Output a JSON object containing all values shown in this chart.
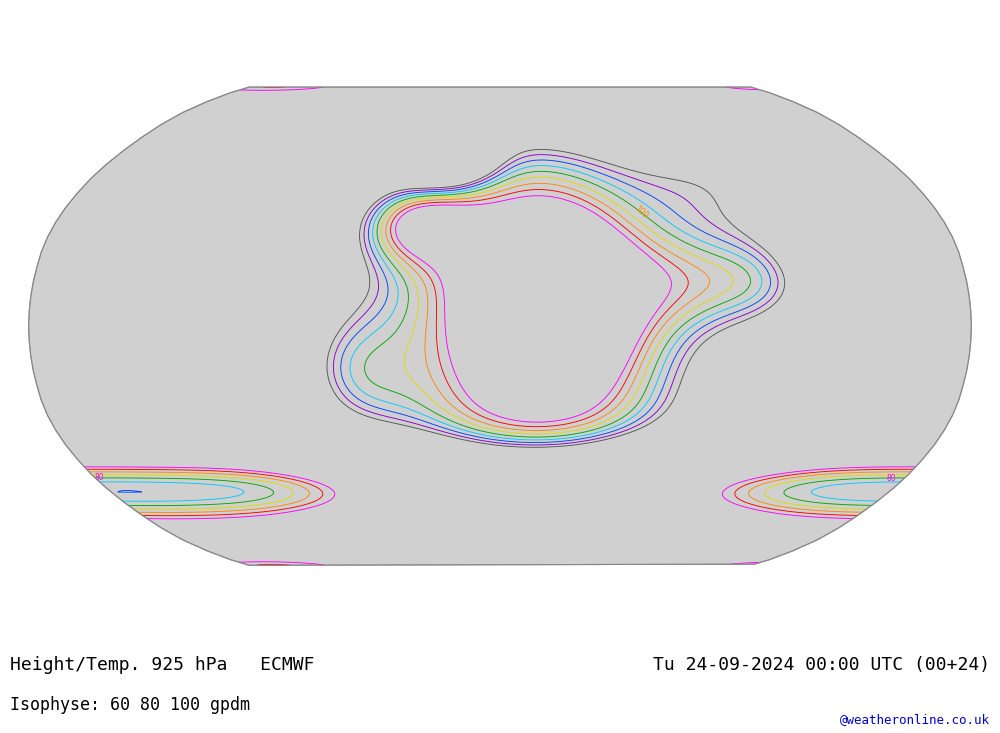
{
  "title_left": "Height/Temp. 925 hPa   ECMWF",
  "title_right": "Tu 24-09-2024 00:00 UTC (00+24)",
  "subtitle": "Isophyse: 60 80 100 gpdm",
  "watermark": "@weatheronline.co.uk",
  "background_color": "#ffffff",
  "map_background": "#d0d0d0",
  "land_color": "#c8f0a0",
  "ocean_color": "#d0d0d0",
  "coastline_color": "#888888",
  "border_color": "#aaaaaa",
  "outer_ellipse_color": "#c8c8c8",
  "contour_colors": [
    "#ff00ff",
    "#ff0000",
    "#ff8800",
    "#dddd00",
    "#00aa00",
    "#00ccff",
    "#0044ff",
    "#8800cc",
    "#555555"
  ],
  "title_fontsize": 13,
  "subtitle_fontsize": 12,
  "watermark_color": "#0000cc",
  "figsize": [
    10.0,
    7.33
  ],
  "dpi": 100
}
